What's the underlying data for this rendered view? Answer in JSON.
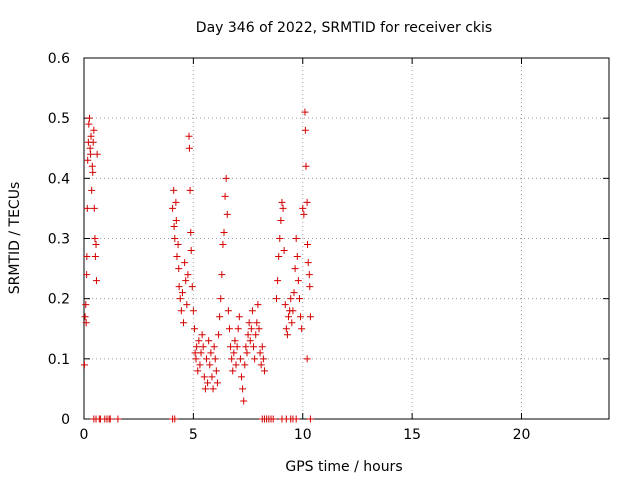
{
  "chart_data": {
    "type": "scatter",
    "title": "Day 346 of 2022, SRMTID for receiver ckis",
    "xlabel": "GPS time / hours",
    "ylabel": "SRMTID / TECUs",
    "xlim": [
      0,
      24
    ],
    "ylim": [
      0,
      0.6
    ],
    "xticks": [
      0,
      5,
      10,
      15,
      20
    ],
    "yticks": [
      0,
      0.1,
      0.2,
      0.3,
      0.4,
      0.5,
      0.6
    ],
    "xtick_labels": [
      "0",
      "5",
      "10",
      "15",
      "20"
    ],
    "ytick_labels": [
      "0",
      "0.1",
      "0.2",
      "0.3",
      "0.4",
      "0.5",
      "0.6"
    ],
    "grid": true,
    "marker": "+",
    "series": [
      {
        "name": "SRMTID",
        "color": "#d40000",
        "points": [
          [
            0.02,
            0.09
          ],
          [
            0.05,
            0.17
          ],
          [
            0.08,
            0.19
          ],
          [
            0.1,
            0.16
          ],
          [
            0.12,
            0.24
          ],
          [
            0.13,
            0.27
          ],
          [
            0.15,
            0.35
          ],
          [
            0.17,
            0.43
          ],
          [
            0.2,
            0.46
          ],
          [
            0.22,
            0.49
          ],
          [
            0.25,
            0.5
          ],
          [
            0.28,
            0.45
          ],
          [
            0.3,
            0.44
          ],
          [
            0.32,
            0.47
          ],
          [
            0.35,
            0.38
          ],
          [
            0.38,
            0.42
          ],
          [
            0.4,
            0.41
          ],
          [
            0.42,
            0.46
          ],
          [
            0.45,
            0.48
          ],
          [
            0.47,
            0.35
          ],
          [
            0.5,
            0.3
          ],
          [
            0.52,
            0.27
          ],
          [
            0.55,
            0.29
          ],
          [
            0.57,
            0.23
          ],
          [
            0.6,
            0.44
          ],
          [
            4.05,
            0.35
          ],
          [
            4.1,
            0.38
          ],
          [
            4.12,
            0.32
          ],
          [
            4.15,
            0.3
          ],
          [
            4.2,
            0.36
          ],
          [
            4.22,
            0.33
          ],
          [
            4.25,
            0.27
          ],
          [
            4.3,
            0.29
          ],
          [
            4.33,
            0.25
          ],
          [
            4.35,
            0.22
          ],
          [
            4.4,
            0.2
          ],
          [
            4.45,
            0.18
          ],
          [
            4.5,
            0.21
          ],
          [
            4.55,
            0.16
          ],
          [
            4.6,
            0.26
          ],
          [
            4.65,
            0.23
          ],
          [
            4.7,
            0.19
          ],
          [
            4.75,
            0.24
          ],
          [
            4.8,
            0.47
          ],
          [
            4.82,
            0.45
          ],
          [
            4.85,
            0.38
          ],
          [
            4.88,
            0.31
          ],
          [
            4.9,
            0.28
          ],
          [
            4.95,
            0.22
          ],
          [
            5.0,
            0.18
          ],
          [
            5.05,
            0.15
          ],
          [
            5.08,
            0.11
          ],
          [
            5.12,
            0.1
          ],
          [
            5.15,
            0.12
          ],
          [
            5.2,
            0.08
          ],
          [
            5.25,
            0.13
          ],
          [
            5.3,
            0.09
          ],
          [
            5.35,
            0.11
          ],
          [
            5.4,
            0.14
          ],
          [
            5.45,
            0.12
          ],
          [
            5.5,
            0.07
          ],
          [
            5.55,
            0.05
          ],
          [
            5.6,
            0.1
          ],
          [
            5.65,
            0.06
          ],
          [
            5.7,
            0.13
          ],
          [
            5.75,
            0.09
          ],
          [
            5.8,
            0.11
          ],
          [
            5.85,
            0.07
          ],
          [
            5.9,
            0.05
          ],
          [
            5.95,
            0.12
          ],
          [
            6.0,
            0.1
          ],
          [
            6.05,
            0.08
          ],
          [
            6.1,
            0.06
          ],
          [
            6.15,
            0.14
          ],
          [
            6.2,
            0.17
          ],
          [
            6.25,
            0.2
          ],
          [
            6.3,
            0.24
          ],
          [
            6.35,
            0.29
          ],
          [
            6.4,
            0.31
          ],
          [
            6.45,
            0.37
          ],
          [
            6.5,
            0.4
          ],
          [
            6.55,
            0.34
          ],
          [
            6.6,
            0.18
          ],
          [
            6.65,
            0.15
          ],
          [
            6.7,
            0.12
          ],
          [
            6.75,
            0.1
          ],
          [
            6.8,
            0.08
          ],
          [
            6.85,
            0.11
          ],
          [
            6.9,
            0.13
          ],
          [
            6.95,
            0.09
          ],
          [
            7.0,
            0.12
          ],
          [
            7.05,
            0.15
          ],
          [
            7.1,
            0.17
          ],
          [
            7.15,
            0.1
          ],
          [
            7.2,
            0.07
          ],
          [
            7.25,
            0.05
          ],
          [
            7.3,
            0.03
          ],
          [
            7.35,
            0.09
          ],
          [
            7.4,
            0.12
          ],
          [
            7.45,
            0.11
          ],
          [
            7.5,
            0.14
          ],
          [
            7.55,
            0.16
          ],
          [
            7.6,
            0.13
          ],
          [
            7.65,
            0.15
          ],
          [
            7.7,
            0.18
          ],
          [
            7.75,
            0.12
          ],
          [
            7.8,
            0.1
          ],
          [
            7.85,
            0.14
          ],
          [
            7.9,
            0.16
          ],
          [
            7.95,
            0.19
          ],
          [
            8.0,
            0.15
          ],
          [
            8.05,
            0.11
          ],
          [
            8.1,
            0.09
          ],
          [
            8.15,
            0.12
          ],
          [
            8.2,
            0.1
          ],
          [
            8.25,
            0.08
          ],
          [
            8.8,
            0.2
          ],
          [
            8.85,
            0.23
          ],
          [
            8.9,
            0.27
          ],
          [
            8.95,
            0.3
          ],
          [
            9.0,
            0.33
          ],
          [
            9.05,
            0.36
          ],
          [
            9.1,
            0.35
          ],
          [
            9.15,
            0.28
          ],
          [
            9.2,
            0.19
          ],
          [
            9.25,
            0.15
          ],
          [
            9.3,
            0.14
          ],
          [
            9.35,
            0.17
          ],
          [
            9.4,
            0.18
          ],
          [
            9.45,
            0.2
          ],
          [
            9.5,
            0.16
          ],
          [
            9.55,
            0.18
          ],
          [
            9.6,
            0.21
          ],
          [
            9.65,
            0.25
          ],
          [
            9.7,
            0.3
          ],
          [
            9.75,
            0.27
          ],
          [
            9.8,
            0.23
          ],
          [
            9.85,
            0.2
          ],
          [
            9.9,
            0.17
          ],
          [
            9.95,
            0.15
          ],
          [
            10.0,
            0.35
          ],
          [
            10.05,
            0.34
          ],
          [
            10.1,
            0.51
          ],
          [
            10.12,
            0.48
          ],
          [
            10.15,
            0.42
          ],
          [
            10.2,
            0.36
          ],
          [
            10.22,
            0.29
          ],
          [
            10.25,
            0.26
          ],
          [
            10.3,
            0.24
          ],
          [
            10.32,
            0.22
          ],
          [
            10.35,
            0.17
          ],
          [
            10.2,
            0.1
          ]
        ],
        "zero_points_x": [
          0.45,
          0.55,
          0.7,
          0.75,
          0.95,
          1.05,
          1.15,
          1.2,
          1.55,
          4.05,
          4.15,
          8.15,
          8.25,
          8.35,
          8.45,
          8.55,
          8.65,
          9.05,
          9.25,
          9.45,
          9.55,
          9.7,
          10.35
        ]
      }
    ]
  }
}
